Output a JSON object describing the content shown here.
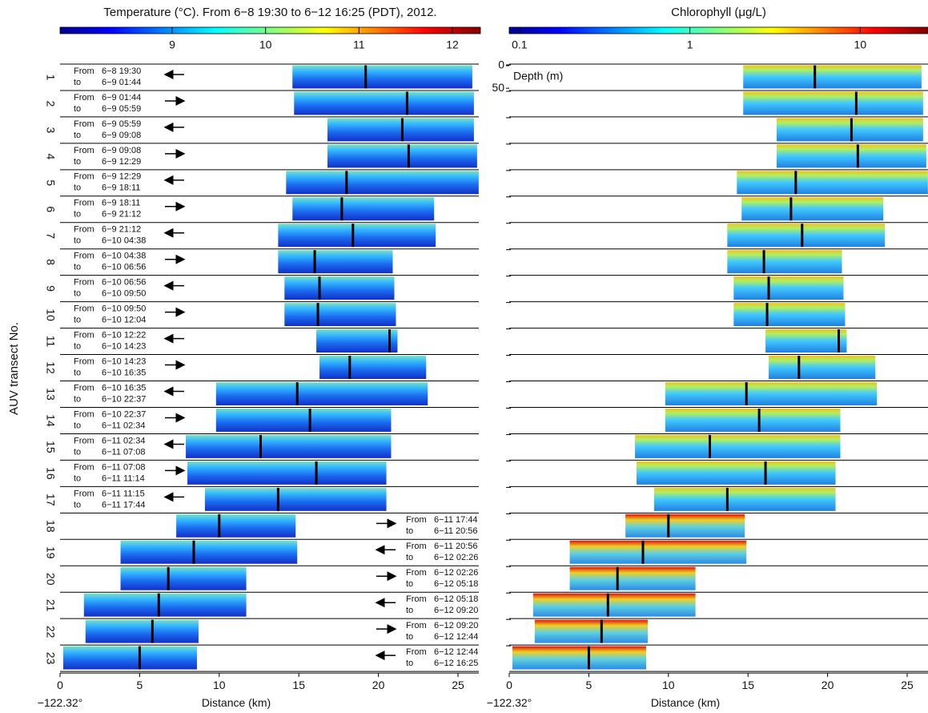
{
  "chart_data": [
    {
      "type": "section",
      "title": "Temperature (°C). From 6−8 19:30 to 6−12 16:25 (PDT), 2012.",
      "colorbar": {
        "lim": [
          7.8,
          12.3
        ],
        "ticks": [
          9,
          10,
          11,
          12
        ],
        "log": false
      },
      "xlim": [
        0,
        26.3
      ],
      "xticks": [
        0,
        5,
        10,
        15,
        20,
        25
      ],
      "xlabel": "Distance (km)",
      "origin_label": "−122.32°",
      "ylabel": "AUV transect No.",
      "from_word": "From",
      "to_word": "to",
      "transects": {
        "labels": [
          "1",
          "2",
          "3",
          "4",
          "5",
          "6",
          "7",
          "8",
          "9",
          "10",
          "11",
          "12",
          "13",
          "14",
          "15",
          "16",
          "17",
          "18",
          "19",
          "20",
          "21",
          "22",
          "23"
        ],
        "start": [
          14.6,
          14.7,
          16.8,
          16.8,
          14.2,
          14.6,
          13.7,
          13.7,
          14.1,
          14.1,
          16.1,
          16.3,
          9.8,
          9.8,
          7.9,
          8.0,
          9.1,
          7.3,
          3.8,
          3.8,
          1.5,
          1.6,
          0.2
        ],
        "end": [
          25.9,
          26.0,
          26.0,
          26.2,
          26.3,
          23.5,
          23.6,
          20.9,
          21.0,
          21.1,
          21.2,
          23.0,
          23.1,
          20.8,
          20.8,
          20.5,
          20.5,
          14.8,
          14.9,
          11.7,
          11.7,
          8.7,
          8.6
        ],
        "marker": [
          19.2,
          21.8,
          21.5,
          21.9,
          18.0,
          17.7,
          18.4,
          16.0,
          16.3,
          16.2,
          20.7,
          18.2,
          14.9,
          15.7,
          12.6,
          16.1,
          13.7,
          10.0,
          8.4,
          6.8,
          6.2,
          5.8,
          5.0
        ],
        "direction": [
          "left",
          "right",
          "left",
          "right",
          "left",
          "right",
          "left",
          "right",
          "left",
          "right",
          "left",
          "right",
          "left",
          "right",
          "left",
          "right",
          "left",
          "right",
          "left",
          "right",
          "left",
          "right",
          "left"
        ],
        "from": [
          "6−8 19:30",
          "6−9 01:44",
          "6−9 05:59",
          "6−9 09:08",
          "6−9 12:29",
          "6−9 18:11",
          "6−9 21:12",
          "6−10 04:38",
          "6−10 06:56",
          "6−10 09:50",
          "6−10 12:22",
          "6−10 14:23",
          "6−10 16:35",
          "6−10 22:37",
          "6−11 02:34",
          "6−11 07:08",
          "6−11 11:15",
          "6−11 17:44",
          "6−11 20:56",
          "6−12 02:26",
          "6−12 05:18",
          "6−12 09:20",
          "6−12 12:44"
        ],
        "to": [
          "6−9 01:44",
          "6−9 05:59",
          "6−9 09:08",
          "6−9 12:29",
          "6−9 18:11",
          "6−9 21:12",
          "6−10 04:38",
          "6−10 06:56",
          "6−10 09:50",
          "6−10 12:04",
          "6−10 14:23",
          "6−10 16:35",
          "6−10 22:37",
          "6−11 02:34",
          "6−11 07:08",
          "6−11 11:14",
          "6−11 17:44",
          "6−11 20:56",
          "6−12 02:26",
          "6−12 05:18",
          "6−12 09:20",
          "6−12 12:44",
          "6−12 16:25"
        ]
      }
    },
    {
      "type": "section",
      "title": "Chlorophyll (μg/L)",
      "colorbar": {
        "lim": [
          0.087,
          25
        ],
        "ticks": [
          0.1,
          1,
          10
        ],
        "log": true
      },
      "xlim": [
        0,
        26.3
      ],
      "xticks": [
        0,
        5,
        10,
        15,
        20,
        25
      ],
      "xlabel": "Distance (km)",
      "origin_label": "−122.32°",
      "depth_label": "Depth (m)",
      "depth_lim": [
        0,
        55
      ],
      "depth_ticks": [
        0,
        50
      ],
      "transects": {
        "start": [
          14.7,
          14.7,
          16.8,
          16.8,
          14.3,
          14.6,
          13.7,
          13.7,
          14.1,
          14.1,
          16.1,
          16.3,
          9.8,
          9.8,
          7.9,
          8.0,
          9.1,
          7.3,
          3.8,
          3.8,
          1.5,
          1.6,
          0.2
        ],
        "end": [
          25.9,
          26.0,
          26.0,
          26.2,
          26.3,
          23.5,
          23.6,
          20.9,
          21.0,
          21.1,
          21.2,
          23.0,
          23.1,
          20.8,
          20.8,
          20.5,
          20.5,
          14.8,
          14.9,
          11.7,
          11.7,
          8.7,
          8.6
        ],
        "marker": [
          19.2,
          21.8,
          21.5,
          21.9,
          18.0,
          17.7,
          18.4,
          16.0,
          16.3,
          16.2,
          20.7,
          18.2,
          14.9,
          15.7,
          12.6,
          16.1,
          13.7,
          10.0,
          8.4,
          6.8,
          6.2,
          5.8,
          5.0
        ]
      }
    }
  ]
}
